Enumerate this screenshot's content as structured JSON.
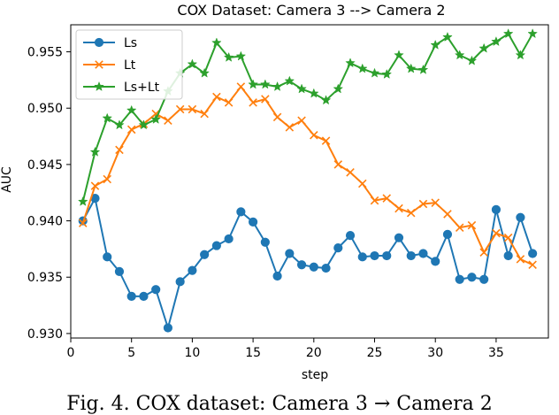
{
  "chart_data": {
    "type": "line",
    "title": "COX Dataset: Camera 3 --> Camera 2",
    "xlabel": "step",
    "ylabel": "AUC",
    "xlim": [
      0,
      39.3
    ],
    "ylim": [
      0.9296,
      0.9574
    ],
    "xticks": [
      0,
      5,
      10,
      15,
      20,
      25,
      30,
      35
    ],
    "yticks": [
      0.93,
      0.935,
      0.94,
      0.945,
      0.95,
      0.955
    ],
    "ytick_labels": [
      "0.930",
      "0.935",
      "0.940",
      "0.945",
      "0.950",
      "0.955"
    ],
    "x": [
      1,
      2,
      3,
      4,
      5,
      6,
      7,
      8,
      9,
      10,
      11,
      12,
      13,
      14,
      15,
      16,
      17,
      18,
      19,
      20,
      21,
      22,
      23,
      24,
      25,
      26,
      27,
      28,
      29,
      30,
      31,
      32,
      33,
      34,
      35,
      36,
      37,
      38
    ],
    "grid": false,
    "legend_position": "upper-left",
    "series": [
      {
        "name": "Ls",
        "color": "#1f77b4",
        "marker": "circle",
        "values": [
          0.94,
          0.942,
          0.9368,
          0.9355,
          0.9333,
          0.9333,
          0.9339,
          0.9305,
          0.9346,
          0.9356,
          0.937,
          0.9378,
          0.9384,
          0.9408,
          0.9399,
          0.9381,
          0.9351,
          0.9371,
          0.9361,
          0.9359,
          0.9358,
          0.9376,
          0.9387,
          0.9368,
          0.9369,
          0.9369,
          0.9385,
          0.9369,
          0.9371,
          0.9364,
          0.9388,
          0.9348,
          0.935,
          0.9348,
          0.941,
          0.9369,
          0.9403,
          0.9371
        ]
      },
      {
        "name": "Lt",
        "color": "#ff7f0e",
        "marker": "x",
        "values": [
          0.9398,
          0.9431,
          0.9437,
          0.9463,
          0.9481,
          0.9486,
          0.9495,
          0.9489,
          0.9499,
          0.9499,
          0.9495,
          0.951,
          0.9505,
          0.9519,
          0.9505,
          0.9508,
          0.9492,
          0.9483,
          0.9489,
          0.9476,
          0.9471,
          0.945,
          0.9443,
          0.9433,
          0.9418,
          0.942,
          0.9411,
          0.9407,
          0.9415,
          0.9416,
          0.9406,
          0.9394,
          0.9396,
          0.9372,
          0.9389,
          0.9385,
          0.9366,
          0.9361
        ]
      },
      {
        "name": "Ls+Lt",
        "color": "#2ca02c",
        "marker": "star",
        "values": [
          0.9417,
          0.9461,
          0.9491,
          0.9485,
          0.9498,
          0.9485,
          0.949,
          0.9515,
          0.9531,
          0.9539,
          0.9531,
          0.9558,
          0.9545,
          0.9546,
          0.9521,
          0.9521,
          0.9519,
          0.9524,
          0.9517,
          0.9513,
          0.9507,
          0.9517,
          0.954,
          0.9535,
          0.9531,
          0.953,
          0.9547,
          0.9535,
          0.9534,
          0.9556,
          0.9563,
          0.9547,
          0.9542,
          0.9553,
          0.9559,
          0.9566,
          0.9547,
          0.9566
        ]
      }
    ]
  },
  "caption": "Fig. 4. COX dataset: Camera 3 → Camera 2"
}
